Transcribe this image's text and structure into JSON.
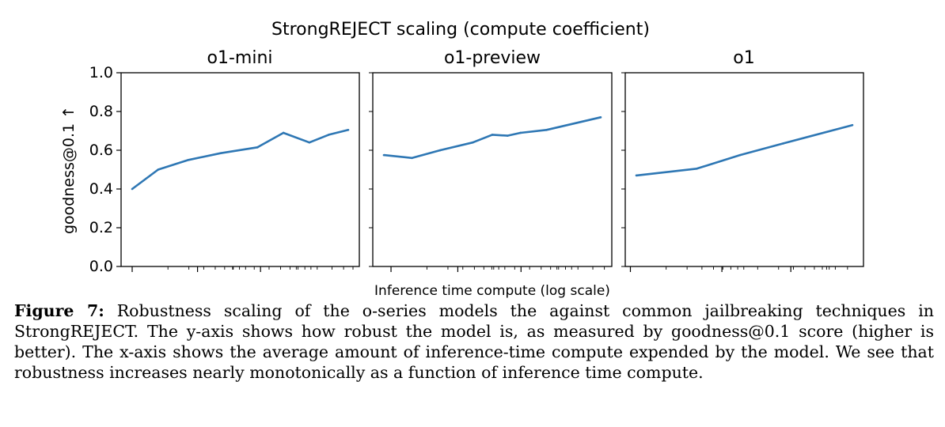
{
  "chart_data": {
    "type": "line",
    "title": "StrongREJECT scaling (compute coefficient)",
    "xlabel": "Inference time compute (log scale)",
    "ylabel": "goodness@0.1 ↑",
    "ylim": [
      0.0,
      1.0
    ],
    "yticks": [
      "0.0",
      "0.2",
      "0.4",
      "0.6",
      "0.8",
      "1.0"
    ],
    "grid": false,
    "series_color": "#2e77b4",
    "panels": [
      {
        "title": "o1-mini",
        "x": [
          0.0,
          0.12,
          0.26,
          0.41,
          0.58,
          0.7,
          0.82,
          0.91,
          1.0
        ],
        "values": [
          0.4,
          0.5,
          0.55,
          0.585,
          0.615,
          0.69,
          0.64,
          0.68,
          0.705
        ]
      },
      {
        "title": "o1-preview",
        "x": [
          0.0,
          0.13,
          0.26,
          0.41,
          0.5,
          0.57,
          0.63,
          0.75,
          1.0
        ],
        "values": [
          0.575,
          0.56,
          0.6,
          0.64,
          0.68,
          0.675,
          0.69,
          0.705,
          0.77
        ]
      },
      {
        "title": "o1",
        "x": [
          0.0,
          0.28,
          0.48,
          0.68,
          1.0
        ],
        "values": [
          0.47,
          0.505,
          0.575,
          0.635,
          0.73
        ]
      }
    ]
  },
  "caption": {
    "label": "Figure 7:",
    "text": "Robustness scaling of the o-series models the against common jailbreaking techniques in StrongREJECT. The y-axis shows how robust the model is, as measured by goodness@0.1 score (higher is better). The x-axis shows the average amount of inference-time compute expended by the model. We see that robustness increases nearly monotonically as a function of inference time compute."
  }
}
